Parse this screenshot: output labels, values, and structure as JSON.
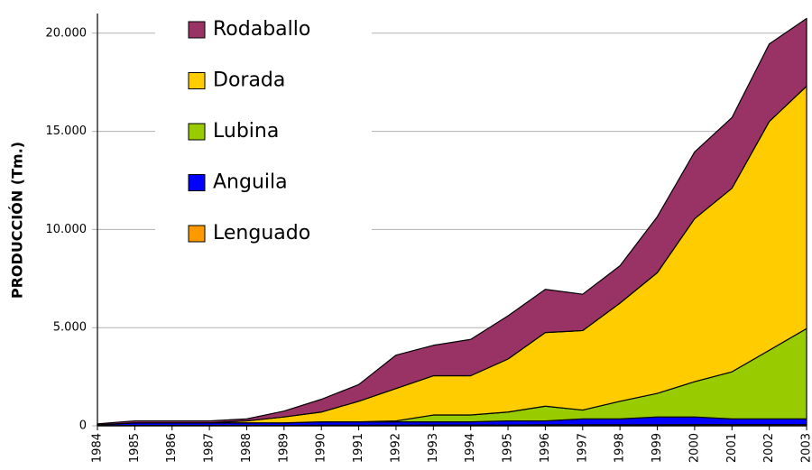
{
  "chart_data": {
    "type": "stacked_area",
    "y_label": "PRODUCCIÓN (Tm.)",
    "categories": [
      "1984",
      "1985",
      "1986",
      "1987",
      "1988",
      "1989",
      "1990",
      "1991",
      "1992",
      "1993",
      "1994",
      "1995",
      "1996",
      "1997",
      "1998",
      "1999",
      "2000",
      "2001",
      "2002",
      "2003"
    ],
    "series": [
      {
        "name": "Lenguado",
        "color": "#ff9900",
        "values": [
          10,
          20,
          20,
          20,
          20,
          20,
          30,
          30,
          30,
          40,
          40,
          40,
          50,
          50,
          50,
          50,
          60,
          60,
          60,
          60
        ]
      },
      {
        "name": "Anguila",
        "color": "#0000ff",
        "values": [
          40,
          130,
          130,
          130,
          130,
          130,
          170,
          170,
          170,
          160,
          160,
          210,
          200,
          300,
          300,
          400,
          390,
          290,
          290,
          290
        ]
      },
      {
        "name": "Lubina",
        "color": "#99cc00",
        "values": [
          0,
          0,
          0,
          0,
          0,
          0,
          0,
          0,
          50,
          350,
          350,
          450,
          750,
          450,
          900,
          1200,
          1800,
          2400,
          3500,
          4600
        ]
      },
      {
        "name": "Dorada",
        "color": "#ffcc00",
        "values": [
          0,
          0,
          0,
          0,
          100,
          300,
          500,
          1050,
          1650,
          2000,
          2000,
          2700,
          3750,
          4050,
          5000,
          6150,
          8300,
          9350,
          11650,
          12350
        ]
      },
      {
        "name": "Rodaballo",
        "color": "#993366",
        "values": [
          50,
          100,
          100,
          100,
          100,
          300,
          650,
          850,
          1700,
          1550,
          1850,
          2200,
          2200,
          1850,
          1900,
          2850,
          3400,
          3600,
          3950,
          3450
        ]
      }
    ],
    "ylim": [
      0,
      21000
    ],
    "yticks": [
      0,
      {
        "value": 5000,
        "label": "5.000"
      },
      {
        "value": 10000,
        "label": "10.000"
      },
      {
        "value": 15000,
        "label": "15.000"
      },
      {
        "value": 20000,
        "label": "20.000"
      }
    ],
    "grid": true,
    "legend": "upper left"
  }
}
